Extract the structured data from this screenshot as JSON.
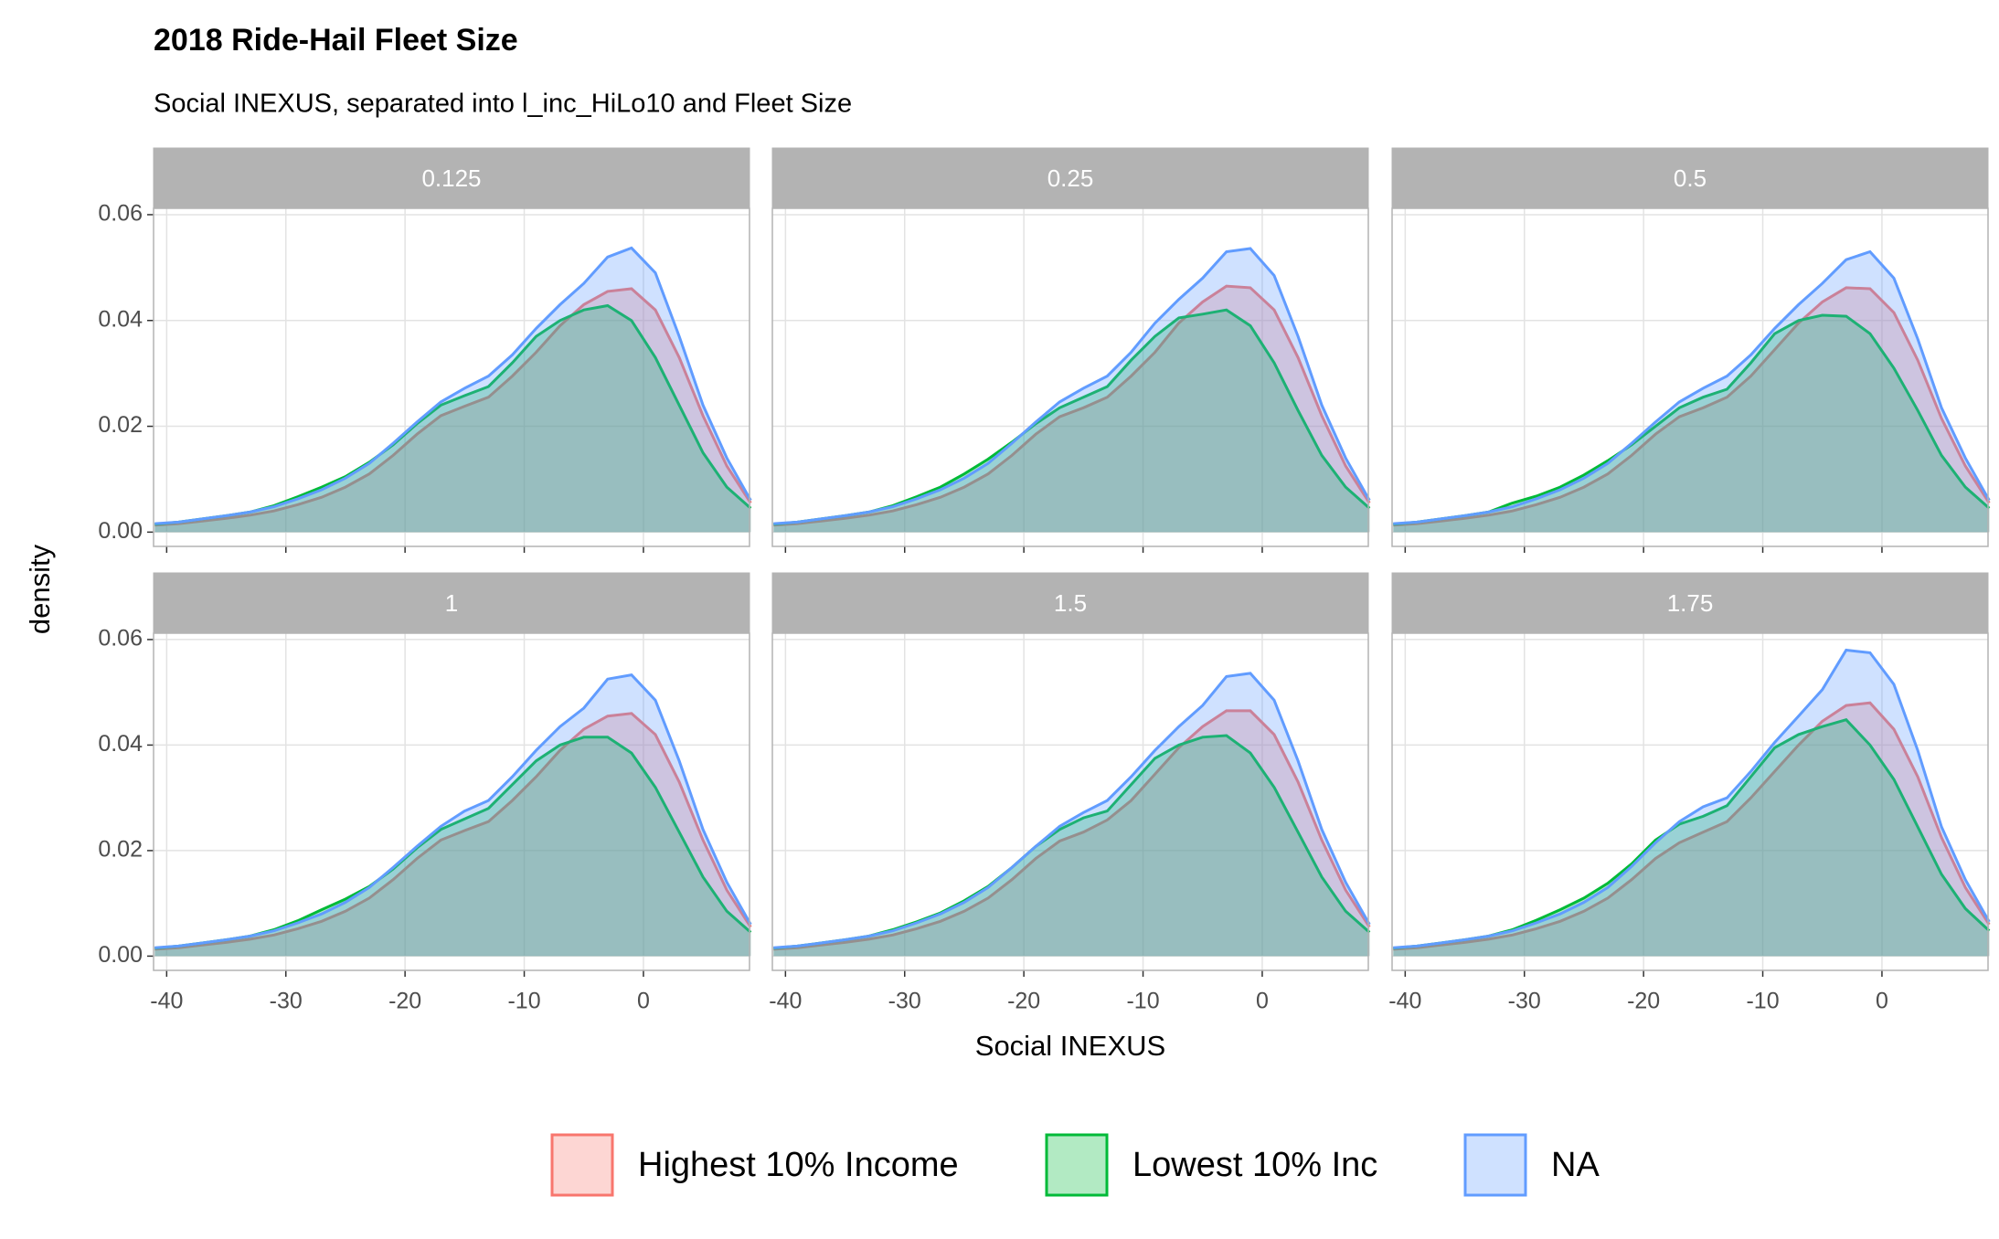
{
  "chart_data": {
    "type": "area",
    "title": "2018 Ride-Hail Fleet Size",
    "subtitle": "Social INEXUS, separated into l_inc_HiLo10 and Fleet Size",
    "x_label": "Social INEXUS",
    "y_label": "density",
    "x": [
      -41,
      -39,
      -37,
      -35,
      -33,
      -31,
      -29,
      -27,
      -25,
      -23,
      -21,
      -19,
      -17,
      -15,
      -13,
      -11,
      -9,
      -7,
      -5,
      -3,
      -1,
      1,
      3,
      5,
      7,
      9
    ],
    "xlim": [
      -41.1,
      8.9
    ],
    "xticks": [
      -40,
      -30,
      -20,
      -10,
      0
    ],
    "ylim": [
      -0.0027,
      0.0612
    ],
    "yticks": [
      {
        "value": 0,
        "label": "0.00"
      },
      {
        "value": 0.02,
        "label": "0.02"
      },
      {
        "value": 0.04,
        "label": "0.04"
      },
      {
        "value": 0.06,
        "label": "0.06"
      }
    ],
    "grid": true,
    "legend_position": "bottom",
    "series": [
      {
        "name": "Highest 10% Income",
        "color": "#F8766D"
      },
      {
        "name": "Lowest 10% Inc",
        "color": "#00BA38"
      },
      {
        "name": "NA",
        "color": "#619CFF"
      }
    ],
    "facets": [
      {
        "label": "0.125",
        "series": [
          {
            "values": [
              0.0013,
              0.0016,
              0.0021,
              0.0026,
              0.0032,
              0.004,
              0.0052,
              0.0066,
              0.0085,
              0.011,
              0.0145,
              0.0185,
              0.022,
              0.0238,
              0.0255,
              0.0295,
              0.034,
              0.039,
              0.043,
              0.0455,
              0.046,
              0.042,
              0.033,
              0.022,
              0.0125,
              0.0055
            ]
          },
          {
            "values": [
              0.0015,
              0.0019,
              0.0025,
              0.0031,
              0.0038,
              0.005,
              0.0067,
              0.0085,
              0.0105,
              0.0132,
              0.0165,
              0.0205,
              0.024,
              0.0258,
              0.0275,
              0.032,
              0.037,
              0.04,
              0.042,
              0.0428,
              0.04,
              0.033,
              0.024,
              0.015,
              0.0085,
              0.0045
            ]
          },
          {
            "values": [
              0.0016,
              0.0019,
              0.0025,
              0.0031,
              0.0038,
              0.0048,
              0.0063,
              0.008,
              0.0102,
              0.013,
              0.0168,
              0.0208,
              0.0246,
              0.0272,
              0.0295,
              0.0335,
              0.0385,
              0.043,
              0.047,
              0.052,
              0.0537,
              0.049,
              0.037,
              0.024,
              0.014,
              0.006
            ]
          }
        ]
      },
      {
        "label": "0.25",
        "series": [
          {
            "values": [
              0.0013,
              0.0016,
              0.0021,
              0.0026,
              0.0032,
              0.004,
              0.0052,
              0.0066,
              0.0085,
              0.011,
              0.0145,
              0.0185,
              0.0218,
              0.0235,
              0.0255,
              0.0295,
              0.034,
              0.0395,
              0.0435,
              0.0465,
              0.0462,
              0.042,
              0.033,
              0.022,
              0.0125,
              0.0055
            ]
          },
          {
            "values": [
              0.0015,
              0.0019,
              0.0025,
              0.0031,
              0.0038,
              0.005,
              0.0067,
              0.0085,
              0.011,
              0.0138,
              0.017,
              0.0205,
              0.0235,
              0.0255,
              0.0275,
              0.0325,
              0.037,
              0.0405,
              0.0412,
              0.042,
              0.039,
              0.032,
              0.023,
              0.0145,
              0.0085,
              0.0045
            ]
          },
          {
            "values": [
              0.0016,
              0.0019,
              0.0025,
              0.0031,
              0.0038,
              0.0048,
              0.0063,
              0.008,
              0.0102,
              0.013,
              0.0168,
              0.0208,
              0.0246,
              0.0272,
              0.0295,
              0.034,
              0.0395,
              0.044,
              0.048,
              0.053,
              0.0536,
              0.0485,
              0.037,
              0.024,
              0.014,
              0.006
            ]
          }
        ]
      },
      {
        "label": "0.5",
        "series": [
          {
            "values": [
              0.0013,
              0.0016,
              0.0021,
              0.0026,
              0.0032,
              0.004,
              0.0052,
              0.0066,
              0.0085,
              0.011,
              0.0145,
              0.0185,
              0.0218,
              0.0235,
              0.0255,
              0.0295,
              0.0345,
              0.0395,
              0.0435,
              0.0462,
              0.046,
              0.0415,
              0.0325,
              0.0215,
              0.0125,
              0.0055
            ]
          },
          {
            "values": [
              0.0015,
              0.0019,
              0.0025,
              0.0031,
              0.0038,
              0.0055,
              0.0068,
              0.0085,
              0.0108,
              0.0135,
              0.0165,
              0.02,
              0.0235,
              0.0255,
              0.027,
              0.032,
              0.0375,
              0.04,
              0.041,
              0.0408,
              0.0375,
              0.031,
              0.023,
              0.0145,
              0.0085,
              0.0045
            ]
          },
          {
            "values": [
              0.0016,
              0.0019,
              0.0025,
              0.0031,
              0.0038,
              0.0048,
              0.0063,
              0.008,
              0.0102,
              0.013,
              0.0168,
              0.0208,
              0.0246,
              0.0272,
              0.0295,
              0.0335,
              0.0385,
              0.043,
              0.047,
              0.0515,
              0.053,
              0.048,
              0.0365,
              0.0235,
              0.014,
              0.006
            ]
          }
        ]
      },
      {
        "label": "1",
        "series": [
          {
            "values": [
              0.0013,
              0.0016,
              0.0021,
              0.0026,
              0.0032,
              0.004,
              0.0052,
              0.0066,
              0.0085,
              0.011,
              0.0145,
              0.0185,
              0.022,
              0.0238,
              0.0255,
              0.0295,
              0.034,
              0.039,
              0.043,
              0.0455,
              0.046,
              0.042,
              0.033,
              0.022,
              0.0125,
              0.0055
            ]
          },
          {
            "values": [
              0.0015,
              0.0019,
              0.0025,
              0.0031,
              0.0038,
              0.005,
              0.0067,
              0.0088,
              0.0108,
              0.0132,
              0.0165,
              0.0205,
              0.024,
              0.026,
              0.028,
              0.0325,
              0.037,
              0.04,
              0.0415,
              0.0415,
              0.0385,
              0.032,
              0.0235,
              0.015,
              0.0085,
              0.0045
            ]
          },
          {
            "values": [
              0.0016,
              0.0019,
              0.0025,
              0.0031,
              0.0038,
              0.0048,
              0.0063,
              0.008,
              0.0102,
              0.013,
              0.0168,
              0.0208,
              0.0246,
              0.0275,
              0.0295,
              0.034,
              0.039,
              0.0435,
              0.047,
              0.0525,
              0.0533,
              0.0485,
              0.037,
              0.024,
              0.014,
              0.006
            ]
          }
        ]
      },
      {
        "label": "1.5",
        "series": [
          {
            "values": [
              0.0013,
              0.0016,
              0.0021,
              0.0026,
              0.0032,
              0.004,
              0.0052,
              0.0066,
              0.0085,
              0.011,
              0.0145,
              0.0185,
              0.0218,
              0.0235,
              0.0258,
              0.0295,
              0.0345,
              0.0395,
              0.0435,
              0.0465,
              0.0465,
              0.042,
              0.033,
              0.022,
              0.0125,
              0.0055
            ]
          },
          {
            "values": [
              0.0015,
              0.0019,
              0.0025,
              0.0031,
              0.0038,
              0.005,
              0.0065,
              0.0082,
              0.0105,
              0.0132,
              0.0168,
              0.0208,
              0.024,
              0.0262,
              0.0275,
              0.0325,
              0.0375,
              0.04,
              0.0415,
              0.0418,
              0.0385,
              0.032,
              0.0235,
              0.015,
              0.0085,
              0.0045
            ]
          },
          {
            "values": [
              0.0016,
              0.0019,
              0.0025,
              0.0031,
              0.0038,
              0.0048,
              0.0063,
              0.008,
              0.0102,
              0.013,
              0.0168,
              0.0208,
              0.0246,
              0.0272,
              0.0295,
              0.034,
              0.039,
              0.0435,
              0.0475,
              0.053,
              0.0536,
              0.0485,
              0.037,
              0.024,
              0.014,
              0.006
            ]
          }
        ]
      },
      {
        "label": "1.75",
        "series": [
          {
            "values": [
              0.0013,
              0.0016,
              0.0021,
              0.0026,
              0.0032,
              0.004,
              0.0052,
              0.0066,
              0.0085,
              0.011,
              0.0145,
              0.0185,
              0.0215,
              0.0235,
              0.0255,
              0.03,
              0.035,
              0.04,
              0.0445,
              0.0475,
              0.048,
              0.043,
              0.034,
              0.0225,
              0.013,
              0.006
            ]
          },
          {
            "values": [
              0.0015,
              0.0019,
              0.0025,
              0.0031,
              0.0038,
              0.005,
              0.0068,
              0.0088,
              0.011,
              0.0138,
              0.0175,
              0.022,
              0.025,
              0.0265,
              0.0285,
              0.034,
              0.0395,
              0.042,
              0.0435,
              0.0448,
              0.04,
              0.0335,
              0.0245,
              0.0155,
              0.009,
              0.0048
            ]
          },
          {
            "values": [
              0.0016,
              0.0019,
              0.0025,
              0.0031,
              0.0038,
              0.0048,
              0.0063,
              0.008,
              0.0102,
              0.013,
              0.017,
              0.0215,
              0.0255,
              0.0283,
              0.03,
              0.035,
              0.0405,
              0.0455,
              0.0505,
              0.058,
              0.0575,
              0.0515,
              0.039,
              0.0245,
              0.0145,
              0.0065
            ]
          }
        ]
      }
    ]
  }
}
